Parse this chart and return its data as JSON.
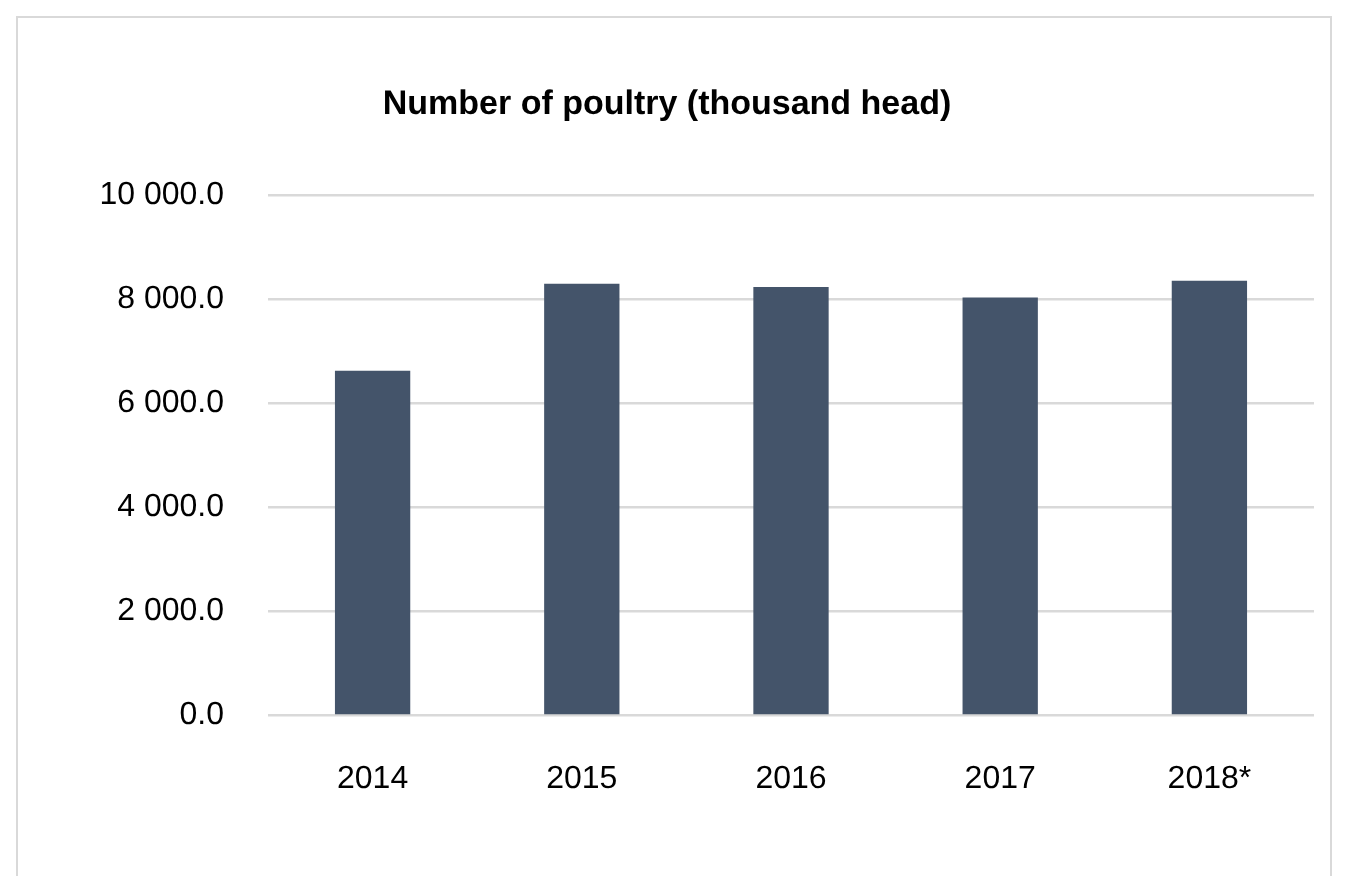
{
  "chart_data": {
    "type": "bar",
    "title": "Number of poultry (thousand head)",
    "categories": [
      "2014",
      "2015",
      "2016",
      "2017",
      "2018*"
    ],
    "values": [
      6620,
      8290,
      8230,
      8030,
      8350
    ],
    "color": "#44546a",
    "ylim": [
      0,
      10000
    ],
    "yticks": [
      {
        "value": 0,
        "label": "0.0"
      },
      {
        "value": 2000,
        "label": "2 000.0"
      },
      {
        "value": 4000,
        "label": "4 000.0"
      },
      {
        "value": 6000,
        "label": "6 000.0"
      },
      {
        "value": 8000,
        "label": "8 000.0"
      },
      {
        "value": 10000,
        "label": "10 000.0"
      }
    ],
    "grid": "y"
  }
}
